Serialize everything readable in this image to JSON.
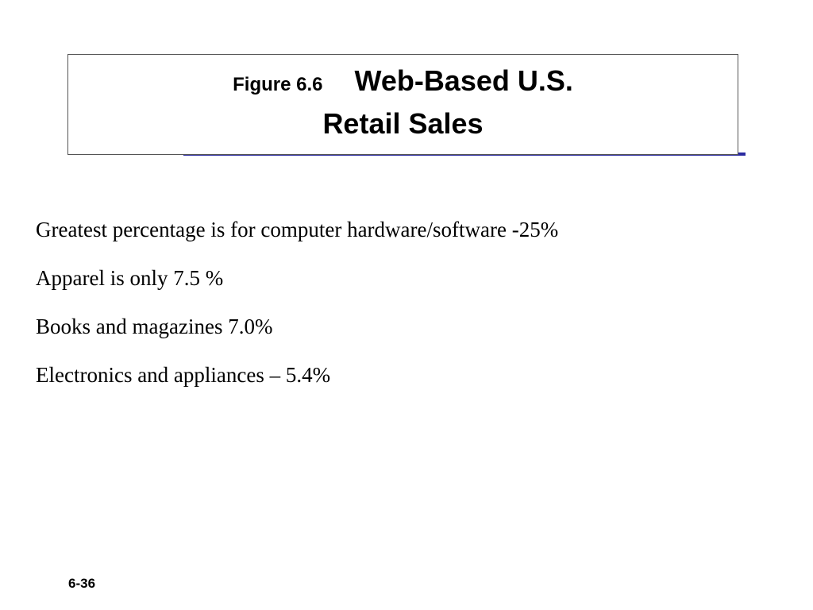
{
  "header": {
    "figure_label": "Figure 6.6",
    "title_line1": "Web-Based U.S.",
    "title_line2": "Retail Sales"
  },
  "bullets": [
    "Greatest percentage is for computer hardware/software -25%",
    "Apparel is only 7.5 %",
    "Books and magazines 7.0%",
    "Electronics and appliances – 5.4%"
  ],
  "footer": {
    "page_number": "6-36"
  }
}
